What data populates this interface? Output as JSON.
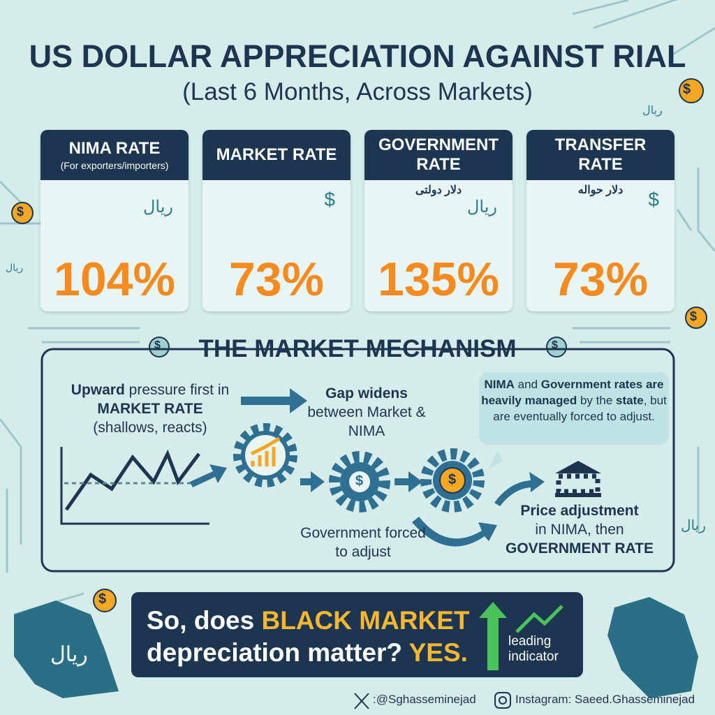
{
  "header": {
    "title": "US DOLLAR APPRECIATION AGAINST RIAL",
    "subtitle": "(Last 6 Months, Across Markets)"
  },
  "decor": {
    "coin": "$",
    "rial": "ریال"
  },
  "cards": [
    {
      "title": "NIMA RATE",
      "note": "(For exporters/importers)",
      "currency": "ریال",
      "value": "104%"
    },
    {
      "title": "MARKET RATE",
      "currency": "$",
      "value": "73%"
    },
    {
      "title": "GOVERNMENT RATE",
      "persian": "دلار دولتی",
      "currency": "ریال",
      "value": "135%"
    },
    {
      "title": "TRANSFER RATE",
      "persian": "دلار حواله",
      "currency": "$",
      "value": "73%"
    }
  ],
  "mechanism": {
    "title": "THE MARKET MECHANISM",
    "pressure": [
      "Upward",
      " pressure first in ",
      "MARKET RATE",
      "(shallows, reacts)"
    ],
    "gap": [
      "Gap widens",
      "between Market & NIMA"
    ],
    "government": "Government forced to adjust",
    "callout": [
      "NIMA",
      " and ",
      "Government rates are heavily managed",
      " by the ",
      "state",
      ", but are eventually forced to adjust."
    ],
    "adjustment": [
      "Price adjustment",
      "in NIMA, then",
      "GOVERNMENT RATE"
    ]
  },
  "conclusion": {
    "text": [
      "So, does ",
      "BLACK MARKET",
      " depreciation matter? ",
      "YES."
    ],
    "indicator": "leading indicator"
  },
  "footer": {
    "x": ":@Sghasseminejad",
    "instagram": "Instagram: Saeed.Ghasseminejad"
  }
}
